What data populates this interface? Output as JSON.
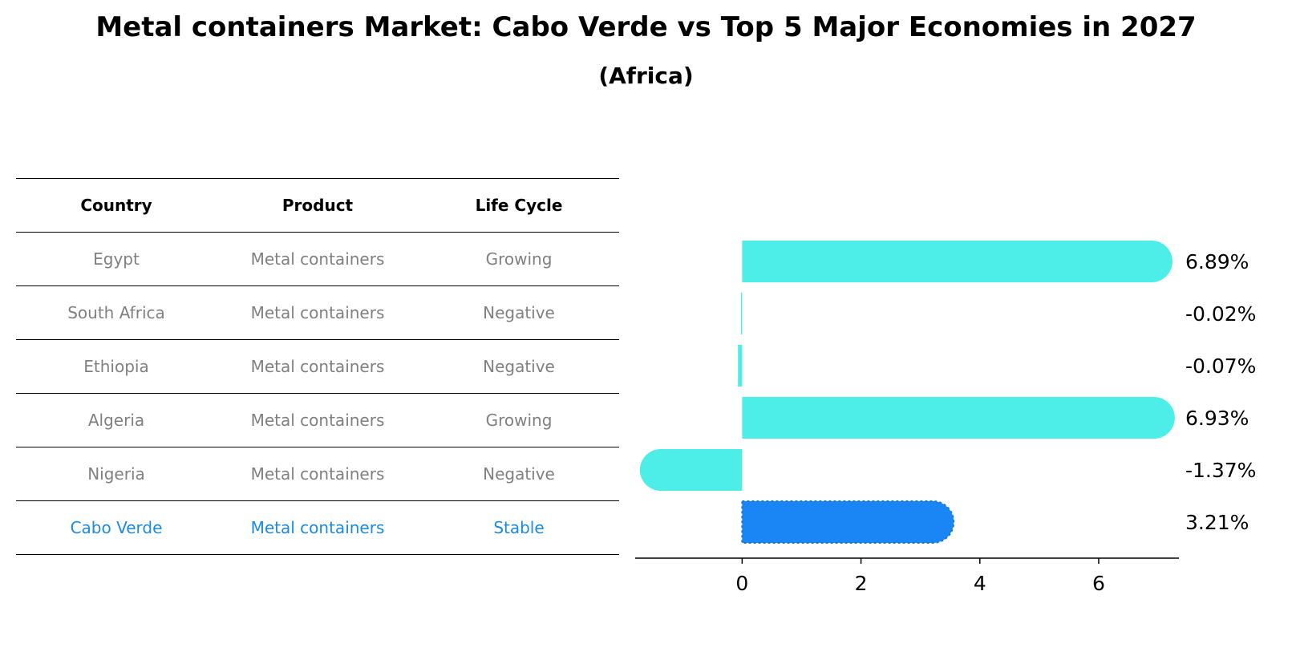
{
  "title": "Metal containers Market: Cabo Verde vs Top 5 Major Economies in 2027",
  "subtitle": "(Africa)",
  "table": {
    "headers": [
      "Country",
      "Product",
      "Life Cycle"
    ],
    "rows": [
      {
        "country": "Egypt",
        "product": "Metal containers",
        "life_cycle": "Growing",
        "highlight": false
      },
      {
        "country": "South Africa",
        "product": "Metal containers",
        "life_cycle": "Negative",
        "highlight": false
      },
      {
        "country": "Ethiopia",
        "product": "Metal containers",
        "life_cycle": "Negative",
        "highlight": false
      },
      {
        "country": "Algeria",
        "product": "Metal containers",
        "life_cycle": "Growing",
        "highlight": false
      },
      {
        "country": "Nigeria",
        "product": "Metal containers",
        "life_cycle": "Negative",
        "highlight": false
      },
      {
        "country": "Cabo Verde",
        "product": "Metal containers",
        "life_cycle": "Stable",
        "highlight": true
      }
    ]
  },
  "colors": {
    "bar": "#4deee8",
    "highlight_bar": "#1a85f5",
    "highlight_text": "#1a8be0",
    "muted_text": "#808080"
  },
  "chart_data": {
    "type": "bar",
    "orientation": "horizontal",
    "categories": [
      "Egypt",
      "South Africa",
      "Ethiopia",
      "Algeria",
      "Nigeria",
      "Cabo Verde"
    ],
    "values": [
      6.89,
      -0.02,
      -0.07,
      6.93,
      -1.37,
      3.21
    ],
    "value_labels": [
      "6.89%",
      "-0.02%",
      "-0.07%",
      "6.93%",
      "-1.37%",
      "3.21%"
    ],
    "highlight": "Cabo Verde",
    "xlim": [
      -1.8,
      7.35
    ],
    "xticks": [
      0,
      2,
      4,
      6
    ],
    "grid": false
  }
}
